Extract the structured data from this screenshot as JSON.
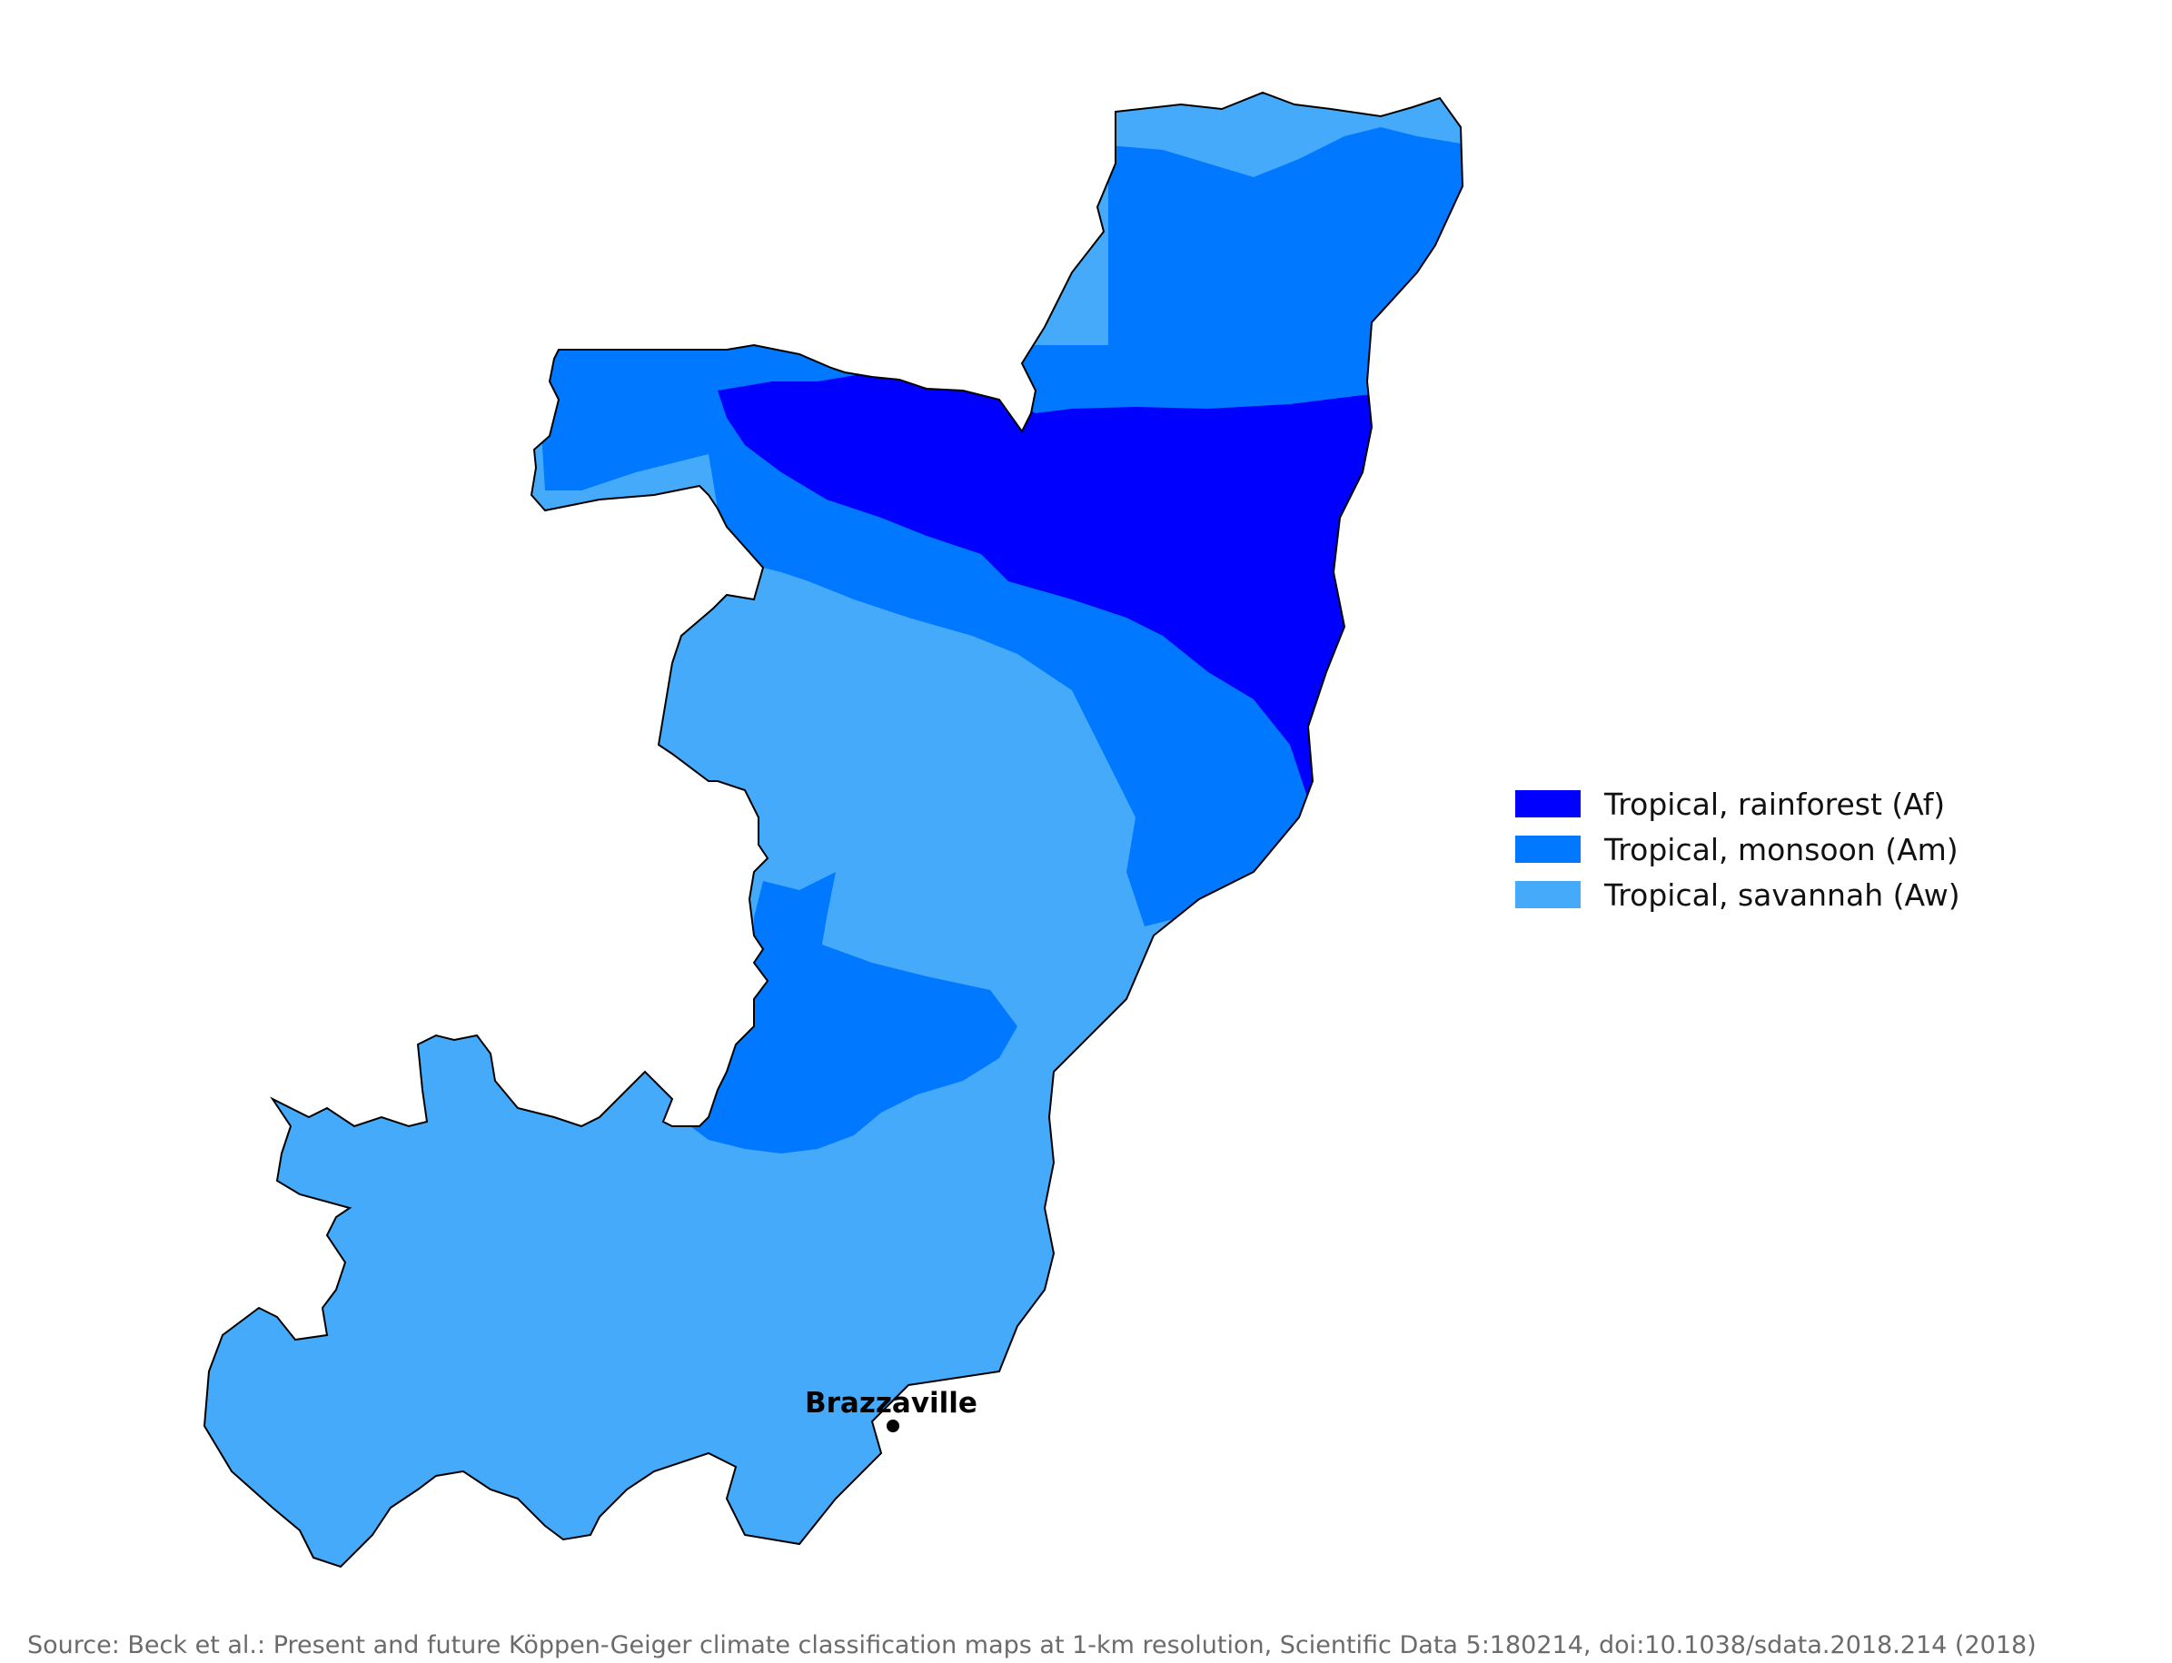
{
  "map": {
    "legend": [
      {
        "label": "Tropical, rainforest (Af)",
        "color": "#0000ff"
      },
      {
        "label": "Tropical, monsoon (Am)",
        "color": "#0078ff"
      },
      {
        "label": "Tropical, savannah (Aw)",
        "color": "#46aafa"
      }
    ],
    "cities": [
      {
        "name": "Brazzaville"
      }
    ],
    "source": "Source: Beck et al.: Present and future Köppen-Geiger climate classification maps at 1-km resolution, Scientific Data 5:180214, doi:10.1038/sdata.2018.214 (2018)"
  }
}
